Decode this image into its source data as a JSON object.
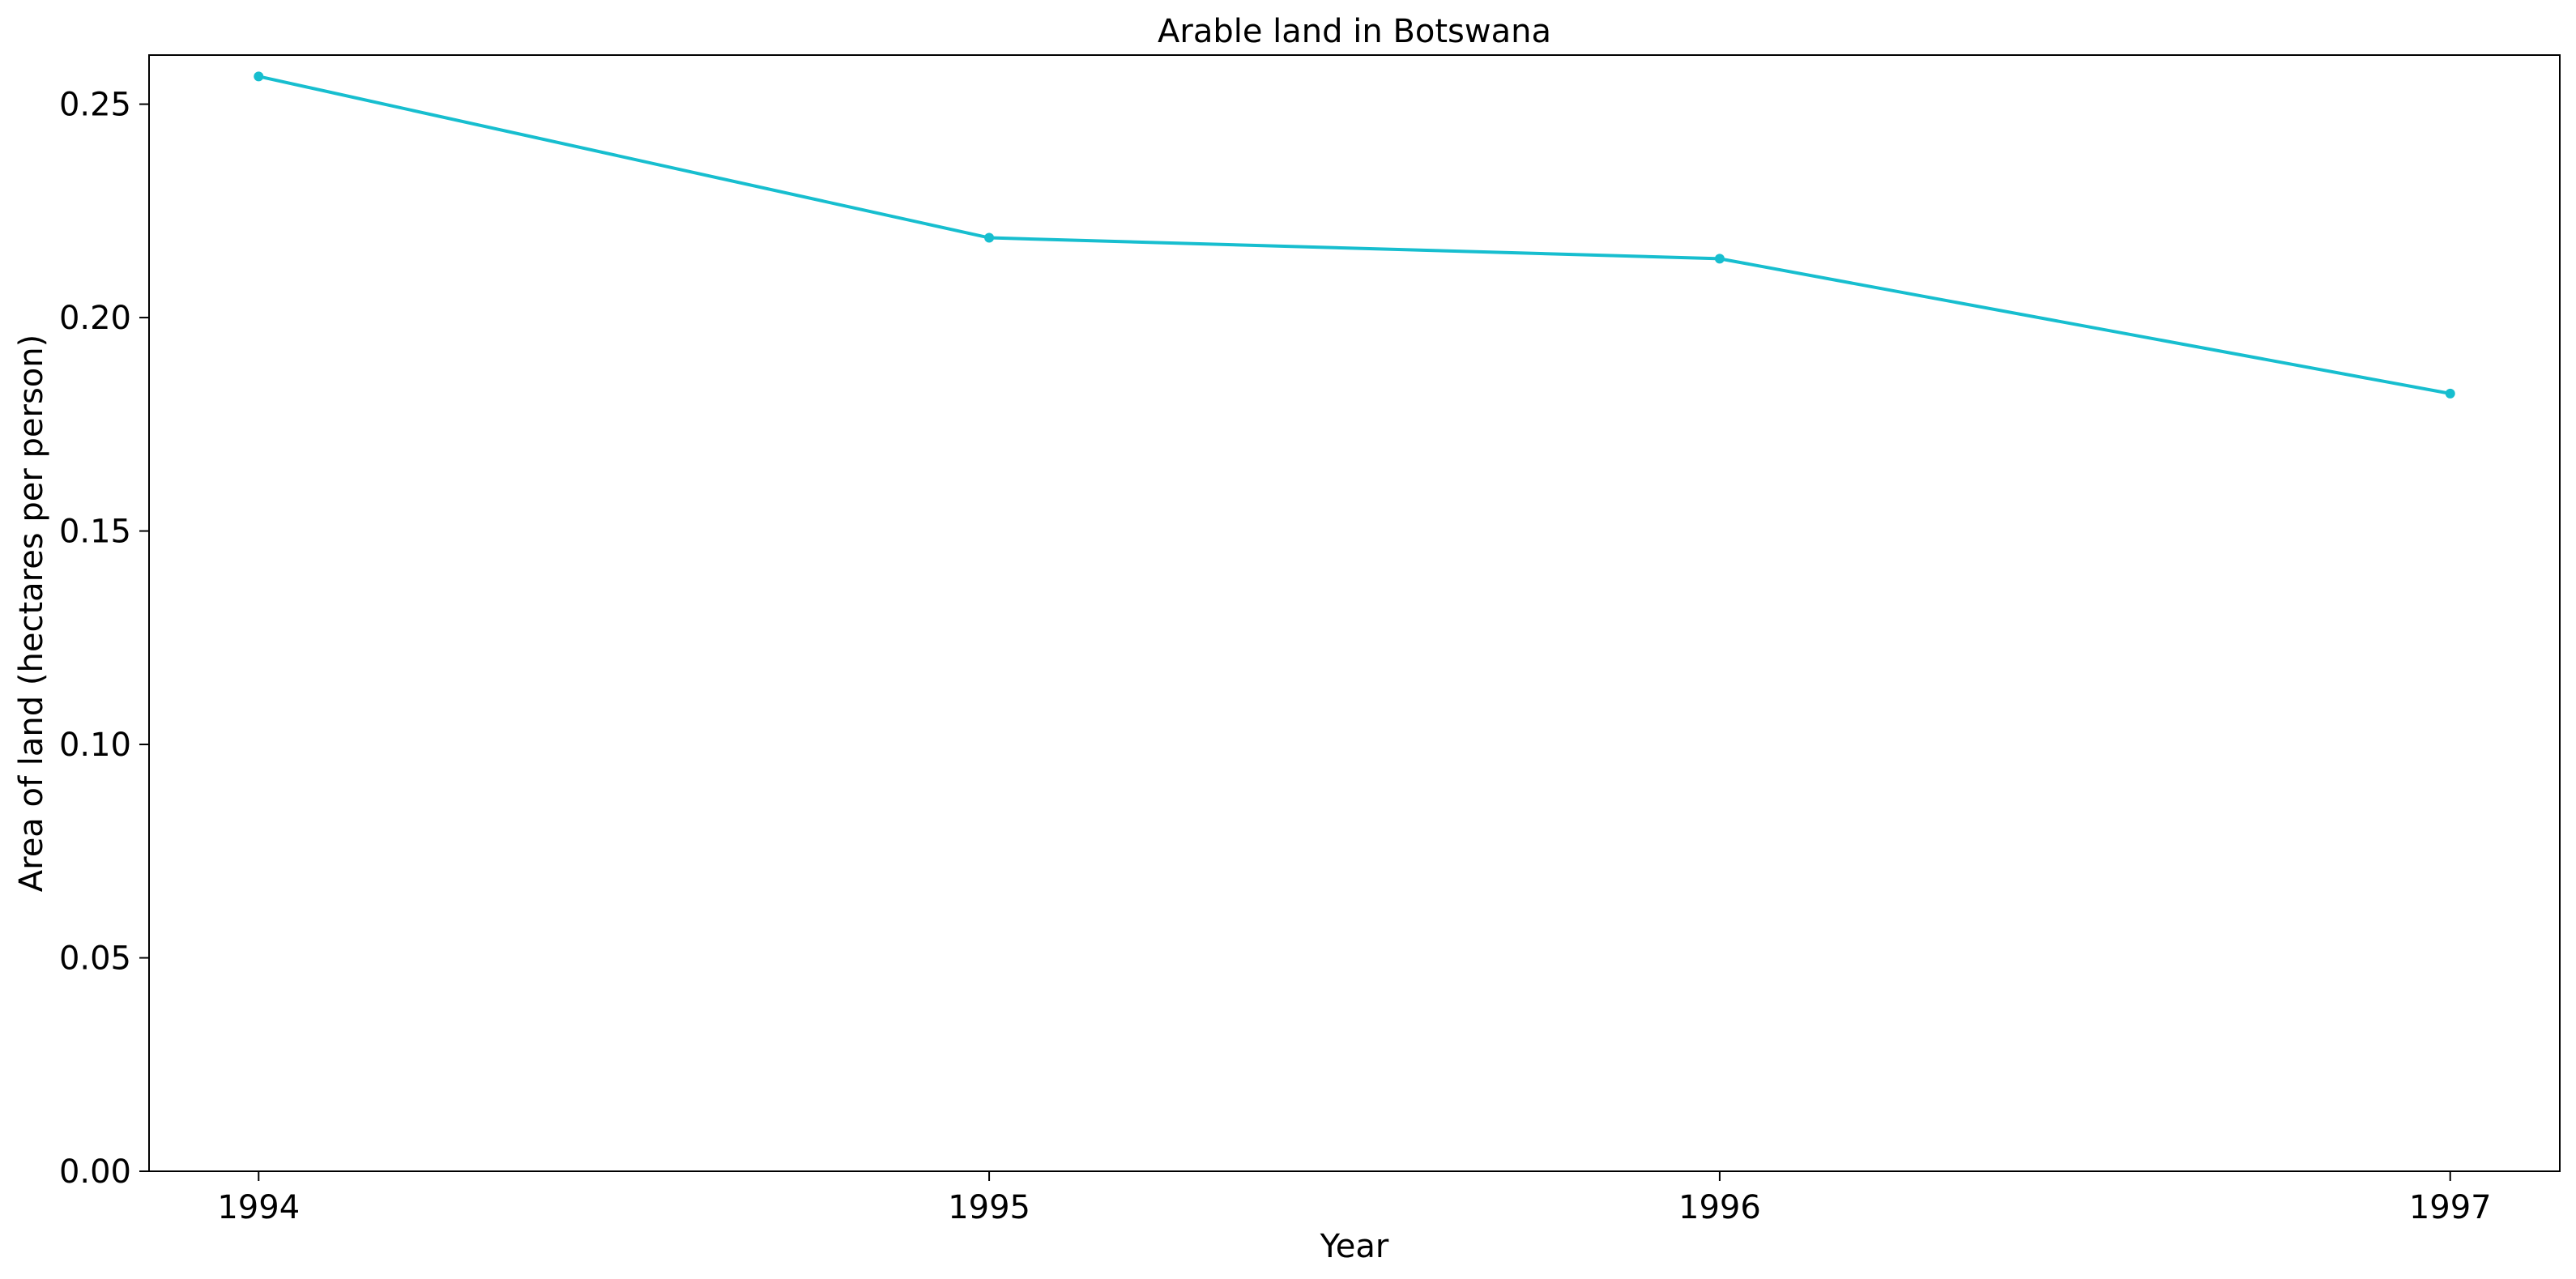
{
  "chart_data": {
    "type": "line",
    "title": "Arable land in Botswana",
    "xlabel": "Year",
    "ylabel": "Area of land (hectares per person)",
    "x": [
      1994,
      1995,
      1996,
      1997
    ],
    "series": [
      {
        "values": [
          0.2565,
          0.2187,
          0.2138,
          0.1822
        ]
      }
    ],
    "xlim": [
      1993.85,
      1997.15
    ],
    "ylim": [
      0,
      0.2615
    ],
    "xticks": [
      "1994",
      "1995",
      "1996",
      "1997"
    ],
    "yticks": [
      "0.00",
      "0.05",
      "0.10",
      "0.15",
      "0.20",
      "0.25"
    ],
    "grid": false,
    "line_color": "#17becf",
    "marker": "circle"
  }
}
